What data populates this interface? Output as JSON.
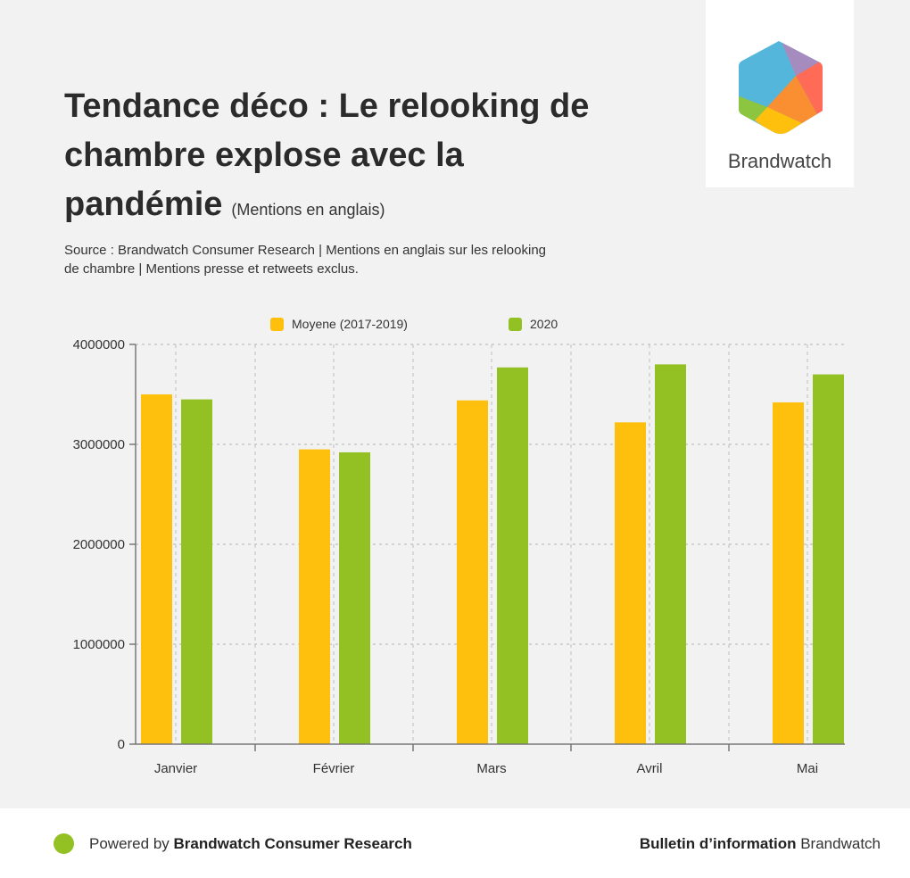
{
  "header": {
    "title": "Tendance déco : Le relooking de chambre explose avec la pandémie",
    "subtitle": "(Mentions en anglais)",
    "source": "Source : Brandwatch Consumer Research | Mentions en anglais sur les relooking de chambre | Mentions presse et retweets exclus."
  },
  "logo": {
    "text": "Brandwatch"
  },
  "footer": {
    "powered_prefix": "Powered by",
    "powered_brand": "Brandwatch Consumer Research",
    "bulletin_bold": "Bulletin d’information",
    "bulletin_rest": "Brandwatch"
  },
  "colors": {
    "yellow": "#ffbf0d",
    "green": "#93c022"
  },
  "chart_data": {
    "type": "bar",
    "categories": [
      "Janvier",
      "Février",
      "Mars",
      "Avril",
      "Mai"
    ],
    "series": [
      {
        "name": "Moyene (2017-2019)",
        "color": "#ffbf0d",
        "values": [
          3500000,
          2950000,
          3440000,
          3220000,
          3420000
        ]
      },
      {
        "name": "2020",
        "color": "#93c022",
        "values": [
          3450000,
          2920000,
          3770000,
          3800000,
          3700000
        ]
      }
    ],
    "yticks": [
      "0",
      "1000000",
      "2000000",
      "3000000",
      "4000000"
    ],
    "ylim": [
      0,
      4000000
    ],
    "grid": true,
    "legend": "top-center"
  }
}
